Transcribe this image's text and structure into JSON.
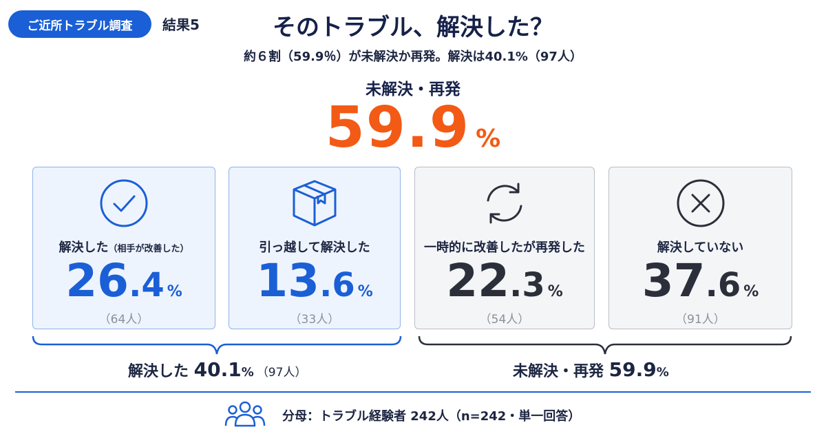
{
  "header": {
    "tag_label": "ご近所トラブル調査",
    "result_label": "結果5",
    "title": "そのトラブル、解決した？",
    "subtitle": "約６割（59.9％）が未解決か再発。解決は40.1%（97人）"
  },
  "hero": {
    "label": "未解決・再発",
    "value": "59.9",
    "unit": "%"
  },
  "colors": {
    "accent_blue": "#1a5fd6",
    "accent_orange": "#f25a15",
    "dark": "#2b2f3a"
  },
  "chart_data": {
    "type": "table",
    "unit": "%",
    "categories": [
      "解決した（相手が改善した）",
      "引っ越して解決した",
      "一時的に改善したが再発した",
      "解決していない"
    ],
    "values": [
      26.4,
      13.6,
      22.3,
      37.6
    ],
    "counts": [
      64,
      33,
      54,
      91
    ],
    "groups": [
      {
        "label": "解決した",
        "value": 40.1,
        "count": 97
      },
      {
        "label": "未解決・再発",
        "value": 59.9
      }
    ]
  },
  "cards": [
    {
      "label_main": "解決した",
      "label_sub": "（相手が改善した）",
      "int": "26",
      "dec": ".4",
      "unit": "%",
      "count": "（64人）",
      "icon": "check-circle-icon",
      "theme": "blue"
    },
    {
      "label_main": "引っ越して解決した",
      "label_sub": "",
      "int": "13",
      "dec": ".6",
      "unit": "%",
      "count": "（33人）",
      "icon": "box-icon",
      "theme": "blue"
    },
    {
      "label_main": "一時的に改善したが再発した",
      "label_sub": "",
      "int": "22",
      "dec": ".3",
      "unit": "%",
      "count": "（54人）",
      "icon": "refresh-icon",
      "theme": "gray"
    },
    {
      "label_main": "解決していない",
      "label_sub": "",
      "int": "37",
      "dec": ".6",
      "unit": "%",
      "count": "（91人）",
      "icon": "x-circle-icon",
      "theme": "gray"
    }
  ],
  "summary": {
    "resolved": {
      "label": "解決した ",
      "value": "40.1",
      "unit": "%",
      "count": "（97人）"
    },
    "unresolved": {
      "label": "未解決・再発 ",
      "value": "59.9",
      "unit": "%"
    }
  },
  "footer": {
    "text": "分母：トラブル経験者 242人（n=242・単一回答）",
    "icon": "people-group-icon"
  }
}
